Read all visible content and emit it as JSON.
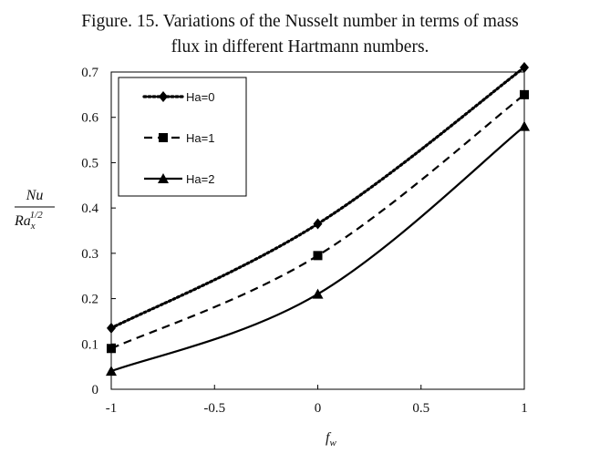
{
  "caption": {
    "line1": "Figure. 15. Variations of the Nusselt number in terms of mass",
    "line2": "flux in different Hartmann numbers."
  },
  "chart_data": {
    "type": "line",
    "title": "",
    "xlabel": "f_w",
    "ylabel": "Nu / Ra_x^{1/2}",
    "x": [
      -1,
      0,
      1
    ],
    "xlim": [
      -1,
      1
    ],
    "ylim": [
      0,
      0.7
    ],
    "x_ticks": [
      "-1",
      "-0.5",
      "0",
      "0.5",
      "1"
    ],
    "y_ticks": [
      "0",
      "0.1",
      "0.2",
      "0.3",
      "0.4",
      "0.5",
      "0.6",
      "0.7"
    ],
    "grid": false,
    "legend_position": "top-left",
    "series": [
      {
        "name": "Ha=0",
        "values": [
          0.135,
          0.365,
          0.71
        ],
        "line_style": "dotted",
        "marker": "diamond"
      },
      {
        "name": "Ha=1",
        "values": [
          0.09,
          0.295,
          0.65
        ],
        "line_style": "dashed",
        "marker": "square"
      },
      {
        "name": "Ha=2",
        "values": [
          0.04,
          0.21,
          0.58
        ],
        "line_style": "solid",
        "marker": "triangle"
      }
    ],
    "colors": {
      "line": "#000000",
      "frame": "#000000"
    }
  }
}
